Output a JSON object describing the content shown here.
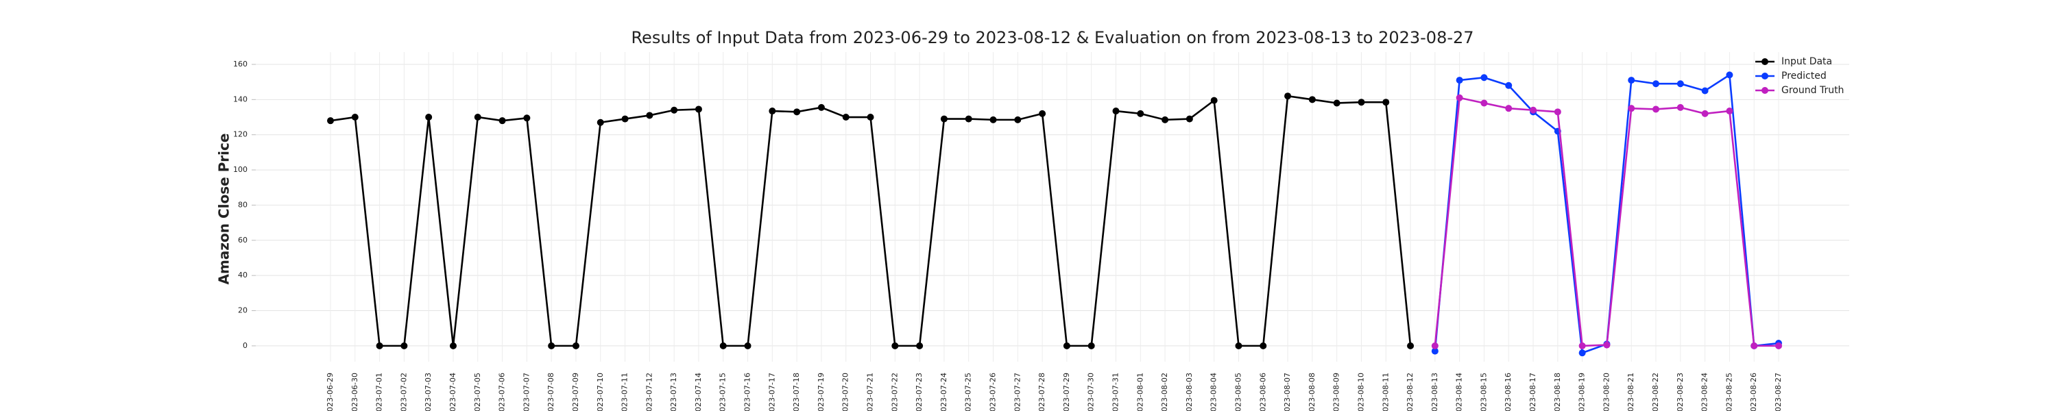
{
  "chart_data": {
    "type": "line",
    "title": "Results of Input Data from 2023-06-29 to 2023-08-12 & Evaluation on from 2023-08-13 to 2023-08-27",
    "ylabel": "Amazon Close Price",
    "categories": [
      "2023-06-29",
      "2023-06-30",
      "2023-07-01",
      "2023-07-02",
      "2023-07-03",
      "2023-07-04",
      "2023-07-05",
      "2023-07-06",
      "2023-07-07",
      "2023-07-08",
      "2023-07-09",
      "2023-07-10",
      "2023-07-11",
      "2023-07-12",
      "2023-07-13",
      "2023-07-14",
      "2023-07-15",
      "2023-07-16",
      "2023-07-17",
      "2023-07-18",
      "2023-07-19",
      "2023-07-20",
      "2023-07-21",
      "2023-07-22",
      "2023-07-23",
      "2023-07-24",
      "2023-07-25",
      "2023-07-26",
      "2023-07-27",
      "2023-07-28",
      "2023-07-29",
      "2023-07-30",
      "2023-07-31",
      "2023-08-01",
      "2023-08-02",
      "2023-08-03",
      "2023-08-04",
      "2023-08-05",
      "2023-08-06",
      "2023-08-07",
      "2023-08-08",
      "2023-08-09",
      "2023-08-10",
      "2023-08-11",
      "2023-08-12",
      "2023-08-13",
      "2023-08-14",
      "2023-08-15",
      "2023-08-16",
      "2023-08-17",
      "2023-08-18",
      "2023-08-19",
      "2023-08-20",
      "2023-08-21",
      "2023-08-22",
      "2023-08-23",
      "2023-08-24",
      "2023-08-25",
      "2023-08-26",
      "2023-08-27"
    ],
    "series": [
      {
        "name": "Input Data",
        "color": "#000000",
        "values": [
          128,
          130,
          0,
          0,
          130,
          0,
          130,
          128,
          129.5,
          0,
          0,
          127,
          129,
          131,
          134,
          134.5,
          0,
          0,
          133.5,
          133,
          135.5,
          130,
          130,
          0,
          0,
          129,
          129,
          128.5,
          128.5,
          132,
          0,
          0,
          133.5,
          132,
          128.5,
          129,
          139.5,
          0,
          0,
          142,
          140,
          138,
          138.5,
          138.5,
          0,
          null,
          null,
          null,
          null,
          null,
          null,
          null,
          null,
          null,
          null,
          null,
          null,
          null,
          null,
          null
        ]
      },
      {
        "name": "Predicted",
        "color": "#0a3cff",
        "values": [
          null,
          null,
          null,
          null,
          null,
          null,
          null,
          null,
          null,
          null,
          null,
          null,
          null,
          null,
          null,
          null,
          null,
          null,
          null,
          null,
          null,
          null,
          null,
          null,
          null,
          null,
          null,
          null,
          null,
          null,
          null,
          null,
          null,
          null,
          null,
          null,
          null,
          null,
          null,
          null,
          null,
          null,
          null,
          null,
          null,
          -3,
          151,
          152.5,
          148,
          133,
          122,
          -4,
          1,
          151,
          149,
          149,
          145,
          154,
          0,
          1.5
        ]
      },
      {
        "name": "Ground Truth",
        "color": "#c020c0",
        "values": [
          null,
          null,
          null,
          null,
          null,
          null,
          null,
          null,
          null,
          null,
          null,
          null,
          null,
          null,
          null,
          null,
          null,
          null,
          null,
          null,
          null,
          null,
          null,
          null,
          null,
          null,
          null,
          null,
          null,
          null,
          null,
          null,
          null,
          null,
          null,
          null,
          null,
          null,
          null,
          null,
          null,
          null,
          null,
          null,
          null,
          0,
          141,
          138,
          135,
          134,
          133,
          0,
          0.5,
          135,
          134.5,
          135.5,
          132,
          133.5,
          0,
          0
        ]
      }
    ],
    "ylim": [
      -9,
      167
    ],
    "yticks": [
      0,
      20,
      40,
      60,
      80,
      100,
      120,
      140,
      160
    ],
    "grid": true,
    "legend": "upper right"
  }
}
